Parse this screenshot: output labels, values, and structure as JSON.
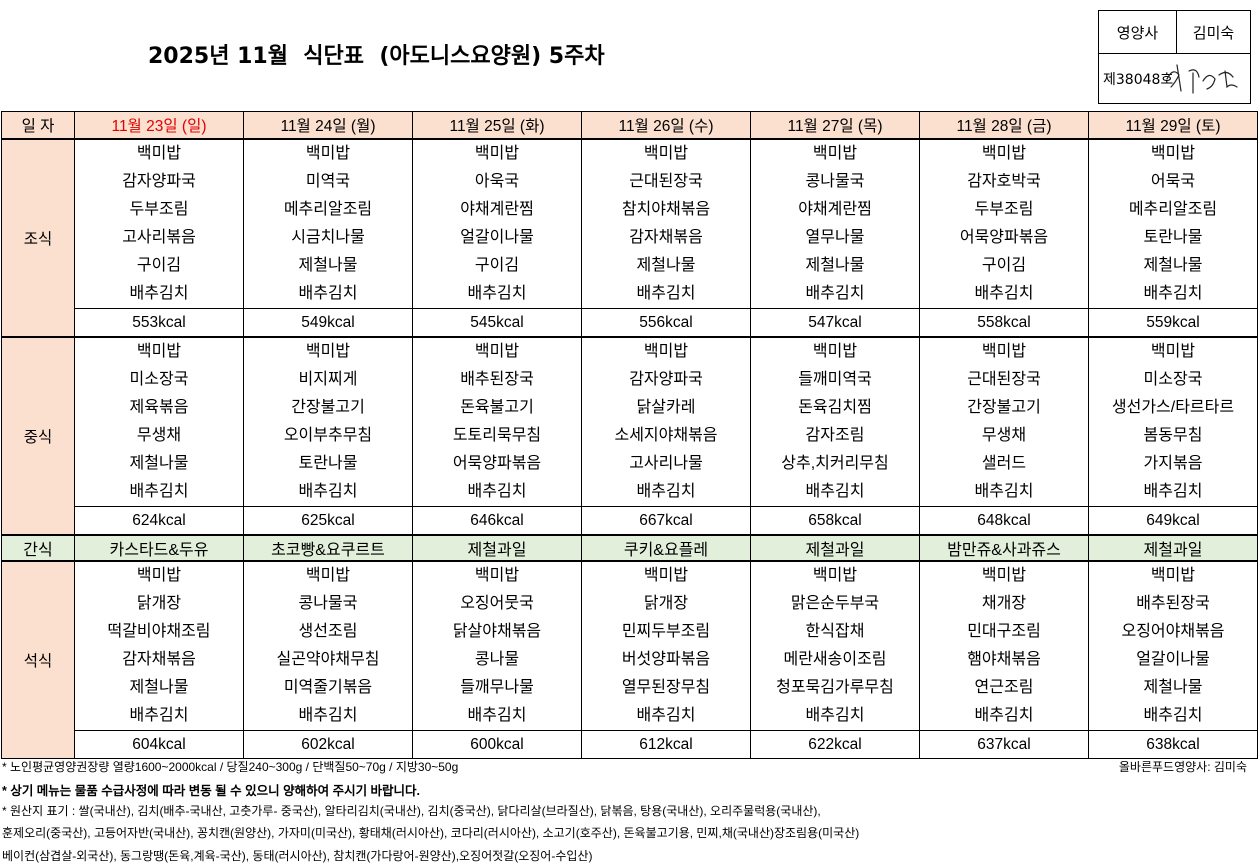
{
  "title": "2025년 11월  식단표  (아도니스요양원) 5주차",
  "signature": {
    "role": "영양사",
    "name": "김미숙",
    "license": "제38048호",
    "handwritten": "김미숙"
  },
  "header_label": "일 자",
  "days": [
    "11월 23일 (일)",
    "11월 24일 (월)",
    "11월 25일 (화)",
    "11월 26일 (수)",
    "11월 27일 (목)",
    "11월 28일 (금)",
    "11월 29일 (토)"
  ],
  "meals": {
    "breakfast": {
      "label": "조식",
      "items": [
        [
          "백미밥",
          "감자양파국",
          "두부조림",
          "고사리볶음",
          "구이김",
          "배추김치"
        ],
        [
          "백미밥",
          "미역국",
          "메추리알조림",
          "시금치나물",
          "제철나물",
          "배추김치"
        ],
        [
          "백미밥",
          "아욱국",
          "야채계란찜",
          "얼갈이나물",
          "구이김",
          "배추김치"
        ],
        [
          "백미밥",
          "근대된장국",
          "참치야채볶음",
          "감자채볶음",
          "제철나물",
          "배추김치"
        ],
        [
          "백미밥",
          "콩나물국",
          "야채계란찜",
          "열무나물",
          "제철나물",
          "배추김치"
        ],
        [
          "백미밥",
          "감자호박국",
          "두부조림",
          "어묵양파볶음",
          "구이김",
          "배추김치"
        ],
        [
          "백미밥",
          "어묵국",
          "메추리알조림",
          "토란나물",
          "제철나물",
          "배추김치"
        ]
      ],
      "kcal": [
        "553kcal",
        "549kcal",
        "545kcal",
        "556kcal",
        "547kcal",
        "558kcal",
        "559kcal"
      ]
    },
    "lunch": {
      "label": "중식",
      "items": [
        [
          "백미밥",
          "미소장국",
          "제육볶음",
          "무생채",
          "제철나물",
          "배추김치"
        ],
        [
          "백미밥",
          "비지찌게",
          "간장불고기",
          "오이부추무침",
          "토란나물",
          "배추김치"
        ],
        [
          "백미밥",
          "배추된장국",
          "돈육불고기",
          "도토리묵무침",
          "어묵양파볶음",
          "배추김치"
        ],
        [
          "백미밥",
          "감자양파국",
          "닭살카레",
          "소세지야채볶음",
          "고사리나물",
          "배추김치"
        ],
        [
          "백미밥",
          "들깨미역국",
          "돈육김치찜",
          "감자조림",
          "상추,치커리무침",
          "배추김치"
        ],
        [
          "백미밥",
          "근대된장국",
          "간장불고기",
          "무생채",
          "샐러드",
          "배추김치"
        ],
        [
          "백미밥",
          "미소장국",
          "생선가스/타르타르",
          "봄동무침",
          "가지볶음",
          "배추김치"
        ]
      ],
      "kcal": [
        "624kcal",
        "625kcal",
        "646kcal",
        "667kcal",
        "658kcal",
        "648kcal",
        "649kcal"
      ]
    },
    "snack": {
      "label": "간식",
      "items": [
        "카스타드&두유",
        "초코빵&요쿠르트",
        "제철과일",
        "쿠키&요플레",
        "제철과일",
        "밤만쥬&사과쥬스",
        "제철과일"
      ]
    },
    "dinner": {
      "label": "석식",
      "items": [
        [
          "백미밥",
          "닭개장",
          "떡갈비야채조림",
          "감자채볶음",
          "제철나물",
          "배추김치"
        ],
        [
          "백미밥",
          "콩나물국",
          "생선조림",
          "실곤약야채무침",
          "미역줄기볶음",
          "배추김치"
        ],
        [
          "백미밥",
          "오징어뭇국",
          "닭살야채볶음",
          "콩나물",
          "들깨무나물",
          "배추김치"
        ],
        [
          "백미밥",
          "닭개장",
          "민찌두부조림",
          "버섯양파볶음",
          "열무된장무침",
          "배추김치"
        ],
        [
          "백미밥",
          "맑은순두부국",
          "한식잡채",
          "메란새송이조림",
          "청포묵김가루무침",
          "배추김치"
        ],
        [
          "백미밥",
          "채개장",
          "민대구조림",
          "햄야채볶음",
          "연근조림",
          "배추김치"
        ],
        [
          "백미밥",
          "배추된장국",
          "오징어야채볶음",
          "얼갈이나물",
          "제철나물",
          "배추김치"
        ]
      ],
      "kcal": [
        "604kcal",
        "602kcal",
        "600kcal",
        "612kcal",
        "622kcal",
        "637kcal",
        "638kcal"
      ]
    }
  },
  "notes": {
    "line1": "* 노인평균영양권장량 열량1600~2000kcal / 당질240~300g / 단백질50~70g / 지방30~50g",
    "credit": "올바른푸드영양사: 김미숙",
    "line2": "* 상기 메뉴는 물품 수급사정에 따라 변동 될 수 있으니 양해하여 주시기 바랍니다.",
    "line3": "* 원산지 표기 : 쌀(국내산), 김치(배추-국내산, 고춧가루- 중국산), 알타리김치(국내산), 김치(중국산), 닭다리살(브라질산), 닭볶음, 탕용(국내산), 오리주물럭용(국내산),",
    "line4": "  훈제오리(중국산), 고등어자반(국내산), 꽁치캔(원양산), 가자미(미국산), 황태채(러시아산), 코다리(러시아산), 소고기(호주산), 돈육불고기용, 민찌,채(국내산)장조림용(미국산)",
    "line5": "  베이컨(삼겹살-외국산), 동그랑땡(돈육,계육-국산), 동태(러시아산), 참치캔(가다랑어-원양산),오징어젓갈(오징어-수입산)"
  }
}
